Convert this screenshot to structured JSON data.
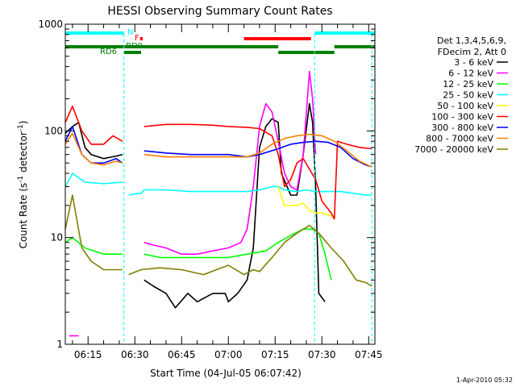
{
  "chart_data": {
    "type": "line",
    "title": "HESSI Observing Summary Count Rates",
    "xlabel": "Start Time (04-Jul-05 06:07:42)",
    "ylabel": "Count Rate (s⁻¹ detector⁻¹)",
    "ylabel_prefix": "Count Rate (s",
    "ylabel_sup1": "-1",
    "ylabel_mid": " detector",
    "ylabel_sup2": "-1",
    "ylabel_suffix": ")",
    "y_scale": "log",
    "ylim": [
      1,
      1000
    ],
    "xlim": [
      "06:07:42",
      "07:47:00"
    ],
    "y_ticks": [
      1,
      10,
      100,
      1000
    ],
    "y_tick_labels": [
      "1",
      "10",
      "100",
      "1000"
    ],
    "x_ticks": [
      "06:15",
      "06:30",
      "06:45",
      "07:00",
      "07:15",
      "07:30",
      "07:45"
    ],
    "grid": false,
    "legend_position": "right",
    "legend_header": [
      "Det 1,3,4,5,6,9,",
      "FDecim 2, Att 0"
    ],
    "footer": "1-Apr-2010 05:32",
    "flags": [
      {
        "label": "N",
        "color": "#00ffff",
        "intervals": [
          [
            "06:07:42",
            "06:26:30"
          ],
          [
            "07:27:40",
            "07:47:00"
          ]
        ]
      },
      {
        "label": "F",
        "color": "#ff0000",
        "intervals": [
          [
            "06:31:40",
            "06:32:30"
          ],
          [
            "07:05:00",
            "07:26:30"
          ]
        ]
      },
      {
        "label": "RD0",
        "color": "#007f00",
        "intervals": [
          [
            "06:07:42",
            "07:16:00"
          ],
          [
            "07:34:00",
            "07:47:00"
          ]
        ]
      },
      {
        "label": "RD6",
        "color": "#007f00",
        "intervals": [
          [
            "06:26:30",
            "06:32:00"
          ],
          [
            "07:16:00",
            "07:34:00"
          ]
        ]
      }
    ],
    "vlines": [
      {
        "time": "06:26:30",
        "color": "#00ffff"
      },
      {
        "time": "07:27:40",
        "color": "#00ffff"
      },
      {
        "time": "07:46:00",
        "color": "#00ffff"
      }
    ],
    "series": [
      {
        "name": "3 - 6 keV",
        "color": "#000000",
        "points": [
          [
            "06:07:42",
            95
          ],
          [
            "06:10:00",
            110
          ],
          [
            "06:12:00",
            120
          ],
          [
            "06:14:00",
            70
          ],
          [
            "06:16:00",
            60
          ],
          [
            "06:20:00",
            55
          ],
          [
            "06:24:00",
            58
          ],
          [
            "06:26:00",
            60
          ],
          [
            "06:26:40",
            0
          ],
          [
            "06:32:00",
            0
          ],
          [
            "06:33:00",
            4
          ],
          [
            "06:36:00",
            3.5
          ],
          [
            "06:40:00",
            3
          ],
          [
            "06:43:00",
            2.2
          ],
          [
            "06:47:00",
            3
          ],
          [
            "06:50:00",
            2.5
          ],
          [
            "06:55:00",
            3
          ],
          [
            "06:59:00",
            3
          ],
          [
            "07:00:00",
            2.5
          ],
          [
            "07:03:00",
            3
          ],
          [
            "07:06:00",
            4
          ],
          [
            "07:08:00",
            8
          ],
          [
            "07:10:00",
            70
          ],
          [
            "07:12:00",
            110
          ],
          [
            "07:14:00",
            130
          ],
          [
            "07:16:00",
            120
          ],
          [
            "07:17:00",
            40
          ],
          [
            "07:20:00",
            25
          ],
          [
            "07:22:00",
            25
          ],
          [
            "07:24:00",
            60
          ],
          [
            "07:26:00",
            180
          ],
          [
            "07:27:00",
            120
          ],
          [
            "07:28:00",
            30
          ],
          [
            "07:29:00",
            3
          ],
          [
            "07:31:00",
            2.5
          ],
          [
            "07:33:00",
            0
          ]
        ]
      },
      {
        "name": "6 - 12 keV",
        "color": "#ff00ff",
        "points": [
          [
            "06:07:42",
            0
          ],
          [
            "06:09:00",
            1.2
          ],
          [
            "06:12:00",
            1.2
          ],
          [
            "06:13:00",
            0
          ],
          [
            "06:32:00",
            0
          ],
          [
            "06:33:00",
            9
          ],
          [
            "06:36:00",
            8.5
          ],
          [
            "06:40:00",
            8
          ],
          [
            "06:45:00",
            7
          ],
          [
            "06:50:00",
            7
          ],
          [
            "06:55:00",
            7.5
          ],
          [
            "07:00:00",
            8
          ],
          [
            "07:04:00",
            9
          ],
          [
            "07:06:00",
            12
          ],
          [
            "07:08:00",
            30
          ],
          [
            "07:10:00",
            110
          ],
          [
            "07:12:00",
            180
          ],
          [
            "07:14:00",
            150
          ],
          [
            "07:16:00",
            80
          ],
          [
            "07:18:00",
            40
          ],
          [
            "07:20:00",
            30
          ],
          [
            "07:22:00",
            28
          ],
          [
            "07:24:00",
            60
          ],
          [
            "07:26:00",
            360
          ],
          [
            "07:27:00",
            200
          ],
          [
            "07:28:00",
            60
          ],
          [
            "07:30:00",
            0
          ]
        ]
      },
      {
        "name": "12 - 25 keV",
        "color": "#00ff00",
        "points": [
          [
            "06:07:42",
            9
          ],
          [
            "06:10:00",
            10
          ],
          [
            "06:14:00",
            8
          ],
          [
            "06:20:00",
            7
          ],
          [
            "06:26:00",
            7
          ],
          [
            "06:27:00",
            0
          ],
          [
            "06:32:00",
            0
          ],
          [
            "06:33:00",
            7
          ],
          [
            "06:38:00",
            6.5
          ],
          [
            "06:45:00",
            6.5
          ],
          [
            "06:52:00",
            6.5
          ],
          [
            "07:00:00",
            6.5
          ],
          [
            "07:06:00",
            7
          ],
          [
            "07:12:00",
            7.5
          ],
          [
            "07:16:00",
            9
          ],
          [
            "07:20:00",
            10.5
          ],
          [
            "07:24:00",
            12
          ],
          [
            "07:27:00",
            12
          ],
          [
            "07:29:00",
            11
          ],
          [
            "07:31:00",
            7
          ],
          [
            "07:33:00",
            4
          ],
          [
            "07:34:00",
            0
          ]
        ]
      },
      {
        "name": "25 - 50 keV",
        "color": "#00ffff",
        "points": [
          [
            "06:07:42",
            30
          ],
          [
            "06:10:00",
            40
          ],
          [
            "06:14:00",
            33
          ],
          [
            "06:20:00",
            32
          ],
          [
            "06:26:00",
            33
          ],
          [
            "06:27:00",
            0
          ],
          [
            "06:28:00",
            25
          ],
          [
            "06:31:00",
            26
          ],
          [
            "06:32:00",
            26
          ],
          [
            "06:33:00",
            28
          ],
          [
            "06:40:00",
            28
          ],
          [
            "06:48:00",
            27
          ],
          [
            "06:55:00",
            27
          ],
          [
            "07:00:00",
            27
          ],
          [
            "07:06:00",
            27
          ],
          [
            "07:10:00",
            28
          ],
          [
            "07:14:00",
            30
          ],
          [
            "07:16:00",
            30
          ],
          [
            "07:18:00",
            28
          ],
          [
            "07:22:00",
            27
          ],
          [
            "07:25:00",
            28
          ],
          [
            "07:28:00",
            27
          ],
          [
            "07:32:00",
            27
          ],
          [
            "07:36:00",
            27
          ],
          [
            "07:40:00",
            26
          ],
          [
            "07:44:00",
            25
          ],
          [
            "07:46:00",
            25
          ]
        ]
      },
      {
        "name": "50 - 100 keV",
        "color": "#ffff00",
        "points": [
          [
            "07:16:00",
            30
          ],
          [
            "07:18:00",
            20
          ],
          [
            "07:22:00",
            20
          ],
          [
            "07:24:00",
            21
          ],
          [
            "07:26:00",
            18
          ],
          [
            "07:28:00",
            17
          ],
          [
            "07:30:00",
            17
          ],
          [
            "07:33:00",
            16
          ],
          [
            "07:34:00",
            15
          ]
        ]
      },
      {
        "name": "100 - 300 keV",
        "color": "#ff0000",
        "points": [
          [
            "06:07:42",
            120
          ],
          [
            "06:10:00",
            170
          ],
          [
            "06:13:00",
            100
          ],
          [
            "06:16:00",
            75
          ],
          [
            "06:20:00",
            75
          ],
          [
            "06:23:00",
            90
          ],
          [
            "06:26:00",
            80
          ],
          [
            "06:27:00",
            0
          ],
          [
            "06:32:00",
            0
          ],
          [
            "06:33:00",
            110
          ],
          [
            "06:40:00",
            115
          ],
          [
            "06:48:00",
            115
          ],
          [
            "06:55:00",
            113
          ],
          [
            "07:00:00",
            110
          ],
          [
            "07:06:00",
            108
          ],
          [
            "07:10:00",
            105
          ],
          [
            "07:14:00",
            90
          ],
          [
            "07:16:00",
            60
          ],
          [
            "07:18:00",
            30
          ],
          [
            "07:20:00",
            35
          ],
          [
            "07:22:00",
            50
          ],
          [
            "07:24:00",
            55
          ],
          [
            "07:28:00",
            35
          ],
          [
            "07:30:00",
            22
          ],
          [
            "07:33:00",
            17
          ],
          [
            "07:34:00",
            15
          ],
          [
            "07:35:00",
            80
          ],
          [
            "07:38:00",
            75
          ],
          [
            "07:42:00",
            70
          ],
          [
            "07:46:00",
            68
          ]
        ]
      },
      {
        "name": "300 - 800 keV",
        "color": "#0000ff",
        "points": [
          [
            "06:07:42",
            80
          ],
          [
            "06:10:00",
            110
          ],
          [
            "06:13:00",
            60
          ],
          [
            "06:16:00",
            50
          ],
          [
            "06:20:00",
            50
          ],
          [
            "06:24:00",
            55
          ],
          [
            "06:26:00",
            50
          ],
          [
            "06:27:00",
            0
          ],
          [
            "06:32:00",
            0
          ],
          [
            "06:33:00",
            65
          ],
          [
            "06:40:00",
            62
          ],
          [
            "06:48:00",
            60
          ],
          [
            "06:55:00",
            60
          ],
          [
            "07:00:00",
            60
          ],
          [
            "07:06:00",
            57
          ],
          [
            "07:10:00",
            60
          ],
          [
            "07:16:00",
            68
          ],
          [
            "07:20:00",
            75
          ],
          [
            "07:24:00",
            78
          ],
          [
            "07:28:00",
            80
          ],
          [
            "07:32:00",
            78
          ],
          [
            "07:36:00",
            70
          ],
          [
            "07:40:00",
            55
          ],
          [
            "07:44:00",
            48
          ],
          [
            "07:46:00",
            46
          ]
        ]
      },
      {
        "name": "800 - 7000 keV",
        "color": "#ff7f00",
        "points": [
          [
            "06:07:42",
            75
          ],
          [
            "06:10:00",
            95
          ],
          [
            "06:13:00",
            60
          ],
          [
            "06:16:00",
            50
          ],
          [
            "06:20:00",
            48
          ],
          [
            "06:24:00",
            52
          ],
          [
            "06:26:00",
            50
          ],
          [
            "06:27:00",
            0
          ],
          [
            "06:32:00",
            0
          ],
          [
            "06:33:00",
            60
          ],
          [
            "06:40:00",
            57
          ],
          [
            "06:48:00",
            57
          ],
          [
            "06:55:00",
            57
          ],
          [
            "07:00:00",
            57
          ],
          [
            "07:06:00",
            57
          ],
          [
            "07:10:00",
            62
          ],
          [
            "07:14:00",
            75
          ],
          [
            "07:18:00",
            85
          ],
          [
            "07:22:00",
            90
          ],
          [
            "07:26:00",
            93
          ],
          [
            "07:30:00",
            90
          ],
          [
            "07:34:00",
            80
          ],
          [
            "07:38:00",
            65
          ],
          [
            "07:42:00",
            52
          ],
          [
            "07:46:00",
            46
          ]
        ]
      },
      {
        "name": "7000 - 20000 keV",
        "color": "#7f7f00",
        "points": [
          [
            "06:07:42",
            12
          ],
          [
            "06:10:00",
            25
          ],
          [
            "06:13:00",
            8
          ],
          [
            "06:16:00",
            6
          ],
          [
            "06:20:00",
            5
          ],
          [
            "06:26:00",
            5
          ],
          [
            "06:27:00",
            0
          ],
          [
            "06:28:00",
            4.5
          ],
          [
            "06:32:00",
            5
          ],
          [
            "06:38:00",
            5.2
          ],
          [
            "06:45:00",
            5
          ],
          [
            "06:52:00",
            4.5
          ],
          [
            "07:00:00",
            5.5
          ],
          [
            "07:05:00",
            4.5
          ],
          [
            "07:08:00",
            5
          ],
          [
            "07:10:00",
            4.8
          ],
          [
            "07:14:00",
            6.5
          ],
          [
            "07:18:00",
            9
          ],
          [
            "07:22:00",
            11
          ],
          [
            "07:26:00",
            13
          ],
          [
            "07:29:00",
            11
          ],
          [
            "07:33:00",
            8
          ],
          [
            "07:37:00",
            6
          ],
          [
            "07:41:00",
            4
          ],
          [
            "07:44:00",
            3.8
          ],
          [
            "07:46:00",
            3.5
          ]
        ]
      }
    ]
  }
}
